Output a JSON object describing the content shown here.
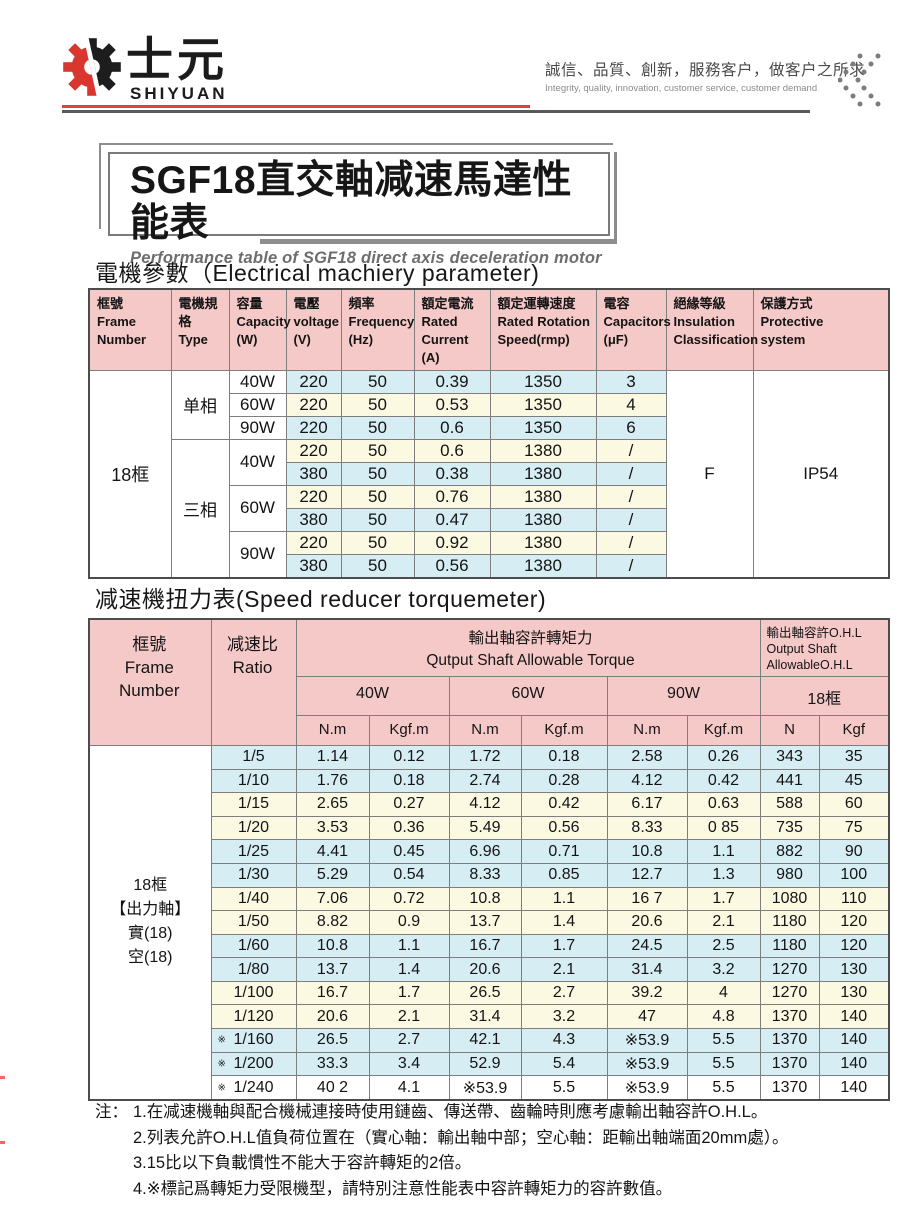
{
  "header": {
    "brand_cn": "士元",
    "brand_en": "SHIYUAN",
    "slogan_cn": "誠信、品質、創新，服務客户，做客户之所求",
    "slogan_en": "Integrity, quality, innovation, customer service, customer demand"
  },
  "title": {
    "main": "SGF18直交軸减速馬達性能表",
    "sub": "Performance table of SGF18 direct axis deceleration motor"
  },
  "colors": {
    "accent_red": "#e2403a",
    "header_pink": "#f6c9c9",
    "row_blue": "#d6edf3",
    "row_cream": "#fcf9e2"
  },
  "table1": {
    "heading": "電機參數（Electrical machiery parameter)",
    "headers": [
      {
        "lines": [
          "框號",
          "Frame",
          "Number"
        ]
      },
      {
        "lines": [
          "電機規格",
          "Type"
        ]
      },
      {
        "lines": [
          "容量",
          "Capacity",
          "(W)"
        ]
      },
      {
        "lines": [
          "電壓",
          "voltage",
          "(V)"
        ]
      },
      {
        "lines": [
          "頻率",
          "Frequency",
          "(Hz)"
        ]
      },
      {
        "lines": [
          "額定電流",
          "Rated",
          "Current",
          "(A)"
        ]
      },
      {
        "lines": [
          "額定運轉速度",
          "Rated Rotation",
          "Speed(rmp)"
        ]
      },
      {
        "lines": [
          "電容",
          "Capacitors",
          "(μF)"
        ]
      },
      {
        "lines": [
          "絕緣等級",
          "Insulation",
          "Classification"
        ]
      },
      {
        "lines": [
          "保護方式",
          "Protective",
          "system"
        ]
      }
    ],
    "frame_number": "18框",
    "insulation": "F",
    "protection": "IP54",
    "phase_groups": [
      {
        "type": "单相",
        "capacities": [
          {
            "capacity": "40W",
            "rows": [
              [
                "220",
                "50",
                "0.39",
                "1350",
                "3"
              ]
            ]
          },
          {
            "capacity": "60W",
            "rows": [
              [
                "220",
                "50",
                "0.53",
                "1350",
                "4"
              ]
            ]
          },
          {
            "capacity": "90W",
            "rows": [
              [
                "220",
                "50",
                "0.6",
                "1350",
                "6"
              ]
            ]
          }
        ]
      },
      {
        "type": "三相",
        "capacities": [
          {
            "capacity": "40W",
            "rows": [
              [
                "220",
                "50",
                "0.6",
                "1380",
                "/"
              ],
              [
                "380",
                "50",
                "0.38",
                "1380",
                "/"
              ]
            ]
          },
          {
            "capacity": "60W",
            "rows": [
              [
                "220",
                "50",
                "0.76",
                "1380",
                "/"
              ],
              [
                "380",
                "50",
                "0.47",
                "1380",
                "/"
              ]
            ]
          },
          {
            "capacity": "90W",
            "rows": [
              [
                "220",
                "50",
                "0.92",
                "1380",
                "/"
              ],
              [
                "380",
                "50",
                "0.56",
                "1380",
                "/"
              ]
            ]
          }
        ]
      }
    ]
  },
  "table2": {
    "heading": "减速機扭力表(Speed reducer torquemeter)",
    "header": {
      "frame_lines": [
        "框號",
        "Frame",
        "Number"
      ],
      "ratio_lines": [
        "减速比",
        "Ratio"
      ],
      "torque_lines": [
        "輸出軸容許轉矩力",
        "Qutput Shaft Allowable Torque"
      ],
      "ohl_lines": [
        "輸出軸容許O.H.L",
        "Output Shaft",
        "AllowableO.H.L"
      ],
      "power": [
        "40W",
        "60W",
        "90W",
        "18框"
      ],
      "units": [
        "N.m",
        "Kgf.m",
        "N.m",
        "Kgf.m",
        "N.m",
        "Kgf.m",
        "N",
        "Kgf"
      ]
    },
    "frame_label_lines": [
      "18框",
      "【出力軸】",
      "實(18)",
      "空(18)"
    ],
    "rows": [
      {
        "marker": "",
        "ratio": "1/5",
        "values": [
          "1.14",
          "0.12",
          "1.72",
          "0.18",
          "2.58",
          "0.26",
          "343",
          "35"
        ],
        "tone": "blue"
      },
      {
        "marker": "",
        "ratio": "1/10",
        "values": [
          "1.76",
          "0.18",
          "2.74",
          "0.28",
          "4.12",
          "0.42",
          "441",
          "45"
        ],
        "tone": "blue"
      },
      {
        "marker": "",
        "ratio": "1/15",
        "values": [
          "2.65",
          "0.27",
          "4.12",
          "0.42",
          "6.17",
          "0.63",
          "588",
          "60"
        ],
        "tone": "cream"
      },
      {
        "marker": "",
        "ratio": "1/20",
        "values": [
          "3.53",
          "0.36",
          "5.49",
          "0.56",
          "8.33",
          "0 85",
          "735",
          "75"
        ],
        "tone": "cream"
      },
      {
        "marker": "",
        "ratio": "1/25",
        "values": [
          "4.41",
          "0.45",
          "6.96",
          "0.71",
          "10.8",
          "1.1",
          "882",
          "90"
        ],
        "tone": "blue"
      },
      {
        "marker": "",
        "ratio": "1/30",
        "values": [
          "5.29",
          "0.54",
          "8.33",
          "0.85",
          "12.7",
          "1.3",
          "980",
          "100"
        ],
        "tone": "blue"
      },
      {
        "marker": "",
        "ratio": "1/40",
        "values": [
          "7.06",
          "0.72",
          "10.8",
          "1.1",
          "16 7",
          "1.7",
          "1080",
          "110"
        ],
        "tone": "cream"
      },
      {
        "marker": "",
        "ratio": "1/50",
        "values": [
          "8.82",
          "0.9",
          "13.7",
          "1.4",
          "20.6",
          "2.1",
          "1180",
          "120"
        ],
        "tone": "cream"
      },
      {
        "marker": "",
        "ratio": "1/60",
        "values": [
          "10.8",
          "1.1",
          "16.7",
          "1.7",
          "24.5",
          "2.5",
          "1180",
          "120"
        ],
        "tone": "blue"
      },
      {
        "marker": "",
        "ratio": "1/80",
        "values": [
          "13.7",
          "1.4",
          "20.6",
          "2.1",
          "31.4",
          "3.2",
          "1270",
          "130"
        ],
        "tone": "blue"
      },
      {
        "marker": "",
        "ratio": "1/100",
        "values": [
          "16.7",
          "1.7",
          "26.5",
          "2.7",
          "39.2",
          "4",
          "1270",
          "130"
        ],
        "tone": "cream"
      },
      {
        "marker": "",
        "ratio": "1/120",
        "values": [
          "20.6",
          "2.1",
          "31.4",
          "3.2",
          "47",
          "4.8",
          "1370",
          "140"
        ],
        "tone": "cream"
      },
      {
        "marker": "※",
        "ratio": "1/160",
        "values": [
          "26.5",
          "2.7",
          "42.1",
          "4.3",
          "※53.9",
          "5.5",
          "1370",
          "140"
        ],
        "tone": "blue"
      },
      {
        "marker": "※",
        "ratio": "1/200",
        "values": [
          "33.3",
          "3.4",
          "52.9",
          "5.4",
          "※53.9",
          "5.5",
          "1370",
          "140"
        ],
        "tone": "blue"
      },
      {
        "marker": "※",
        "ratio": "1/240",
        "values": [
          "40 2",
          "4.1",
          "※53.9",
          "5.5",
          "※53.9",
          "5.5",
          "1370",
          "140"
        ],
        "tone": "white"
      }
    ]
  },
  "notes": {
    "prefix": "注：",
    "items": [
      "1.在减速機軸與配合機械連接時使用鏈齒、傳送帶、齒輪時則應考慮輸出軸容許O.H.L。",
      "2.列表允許O.H.L值負荷位置在（實心軸：輸出軸中部；空心軸：距輸出軸端面20mm處）。",
      "3.15比以下負載慣性不能大于容許轉矩的2倍。",
      "4.※標記爲轉矩力受限機型，請特別注意性能表中容許轉矩力的容許數值。"
    ]
  }
}
